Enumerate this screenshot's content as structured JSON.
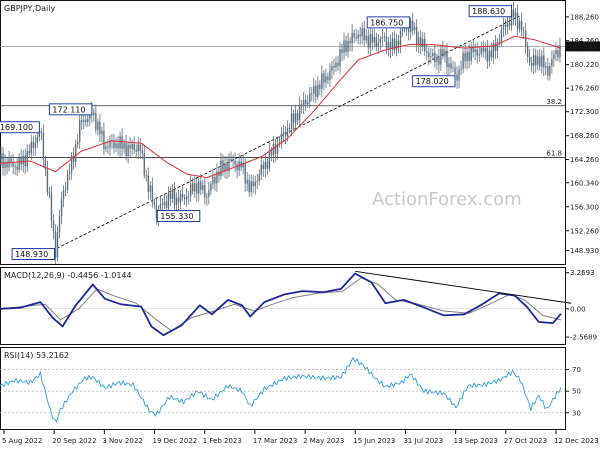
{
  "chart_data": [
    {
      "type": "candlestick",
      "title": "GBPJPY,Daily",
      "ohlc": [
        "183.826",
        "184.204",
        "183.227",
        "183.292"
      ],
      "last_price": "183.292",
      "ylim": [
        147.0,
        190.6
      ],
      "yticks": [
        148.93,
        152.26,
        156.3,
        160.34,
        164.26,
        168.26,
        172.3,
        176.26,
        180.22,
        184.26,
        188.26
      ],
      "ytick_labels": [
        "148.930",
        "152.260",
        "156.300",
        "160.340",
        "164.260",
        "168.260",
        "172.300",
        "176.260",
        "180.220",
        "184.260",
        "188.260"
      ],
      "xtick_labels": [
        "5 Aug 2022",
        "20 Sep 2022",
        "3 Nov 2022",
        "19 Dec 2022",
        "1 Feb 2023",
        "17 Mar 2023",
        "2 May 2023",
        "15 Jun 2023",
        "31 Jul 2023",
        "13 Sep 2023",
        "27 Oct 2023",
        "12 Dec 2023"
      ],
      "price_path": [
        [
          0,
          164.0
        ],
        [
          8,
          163.6
        ],
        [
          18,
          163.2
        ],
        [
          28,
          165.2
        ],
        [
          40,
          169.1
        ],
        [
          48,
          158.5
        ],
        [
          55,
          148.93
        ],
        [
          62,
          158.5
        ],
        [
          72,
          164.2
        ],
        [
          80,
          170.5
        ],
        [
          92,
          172.11
        ],
        [
          104,
          166.5
        ],
        [
          116,
          167.0
        ],
        [
          128,
          166.0
        ],
        [
          138,
          166.5
        ],
        [
          148,
          159.0
        ],
        [
          155,
          155.33
        ],
        [
          168,
          158.0
        ],
        [
          180,
          157.5
        ],
        [
          195,
          160.0
        ],
        [
          205,
          158.3
        ],
        [
          215,
          162.0
        ],
        [
          228,
          164.0
        ],
        [
          240,
          163.0
        ],
        [
          248,
          159.0
        ],
        [
          256,
          161.5
        ],
        [
          268,
          165.0
        ],
        [
          285,
          169.5
        ],
        [
          300,
          173.5
        ],
        [
          315,
          176.5
        ],
        [
          330,
          179.5
        ],
        [
          342,
          183.5
        ],
        [
          355,
          185.5
        ],
        [
          370,
          184.0
        ],
        [
          380,
          184.5
        ],
        [
          390,
          183.0
        ],
        [
          400,
          186.2
        ],
        [
          407,
          186.75
        ],
        [
          418,
          183.5
        ],
        [
          430,
          181.0
        ],
        [
          440,
          182.0
        ],
        [
          452,
          178.02
        ],
        [
          462,
          182.0
        ],
        [
          475,
          182.5
        ],
        [
          488,
          182.0
        ],
        [
          498,
          186.0
        ],
        [
          508,
          188.63
        ],
        [
          516,
          187.0
        ],
        [
          526,
          180.0
        ],
        [
          534,
          181.5
        ],
        [
          542,
          179.0
        ],
        [
          550,
          182.0
        ],
        [
          556,
          183.29
        ]
      ],
      "moving_average": [
        [
          0,
          163.6
        ],
        [
          30,
          164.0
        ],
        [
          55,
          162.2
        ],
        [
          80,
          165.6
        ],
        [
          110,
          167.4
        ],
        [
          140,
          167.0
        ],
        [
          165,
          163.8
        ],
        [
          185,
          161.8
        ],
        [
          205,
          161.2
        ],
        [
          230,
          162.8
        ],
        [
          260,
          164.8
        ],
        [
          285,
          167.8
        ],
        [
          310,
          172.2
        ],
        [
          335,
          177.2
        ],
        [
          355,
          181.0
        ],
        [
          380,
          182.6
        ],
        [
          405,
          183.6
        ],
        [
          430,
          183.6
        ],
        [
          460,
          183.0
        ],
        [
          490,
          183.4
        ],
        [
          510,
          185.0
        ],
        [
          530,
          184.4
        ],
        [
          556,
          183.0
        ]
      ],
      "hlines": [
        {
          "label": "38.2",
          "value": 173.3
        },
        {
          "label": "61.8",
          "value": 164.6
        }
      ],
      "channel_line": {
        "from": [
          52,
          148.93
        ],
        "to": [
          515,
          188.4
        ]
      },
      "annotations": [
        {
          "label": "169.100",
          "x": 40,
          "value": 169.1,
          "side": "left"
        },
        {
          "label": "172.110",
          "x": 92,
          "value": 172.11,
          "side": "left"
        },
        {
          "label": "148.930",
          "x": 55,
          "value": 148.93,
          "side": "left"
        },
        {
          "label": "155.330",
          "x": 155,
          "value": 155.33,
          "side": "right"
        },
        {
          "label": "186.750",
          "x": 407,
          "value": 186.75,
          "side": "left"
        },
        {
          "label": "178.020",
          "x": 452,
          "value": 178.02,
          "side": "left"
        },
        {
          "label": "188.630",
          "x": 508,
          "value": 188.63,
          "side": "left"
        }
      ],
      "watermark": "ActionForex.com",
      "colors": {
        "price": "#5a6f80",
        "ma": "#e03030",
        "trend": "#000000",
        "hline": "#333333"
      }
    },
    {
      "type": "line",
      "title": "MACD(12,26,9) -0.4456 -1.0144",
      "ylim": [
        -3.2,
        3.7
      ],
      "ytick_labels": [
        "3.2693",
        "0.00",
        "-2.5689"
      ],
      "yticks": [
        3.2693,
        0.0,
        -2.5689
      ],
      "macd": [
        [
          0,
          0.0
        ],
        [
          20,
          0.1
        ],
        [
          40,
          0.6
        ],
        [
          52,
          -0.8
        ],
        [
          62,
          -1.6
        ],
        [
          75,
          0.3
        ],
        [
          92,
          2.2
        ],
        [
          104,
          0.9
        ],
        [
          120,
          0.4
        ],
        [
          140,
          0.2
        ],
        [
          150,
          -1.6
        ],
        [
          162,
          -2.4
        ],
        [
          180,
          -1.5
        ],
        [
          198,
          0.3
        ],
        [
          210,
          -0.5
        ],
        [
          226,
          0.8
        ],
        [
          240,
          0.3
        ],
        [
          248,
          -0.7
        ],
        [
          262,
          0.6
        ],
        [
          282,
          1.3
        ],
        [
          300,
          1.6
        ],
        [
          320,
          1.5
        ],
        [
          338,
          1.8
        ],
        [
          352,
          3.2
        ],
        [
          368,
          2.4
        ],
        [
          382,
          0.5
        ],
        [
          400,
          0.8
        ],
        [
          418,
          0.2
        ],
        [
          440,
          -0.6
        ],
        [
          460,
          -0.5
        ],
        [
          478,
          0.4
        ],
        [
          495,
          1.4
        ],
        [
          510,
          1.2
        ],
        [
          522,
          0.2
        ],
        [
          534,
          -1.2
        ],
        [
          548,
          -1.3
        ],
        [
          556,
          -0.45
        ]
      ],
      "signal": [
        [
          0,
          0.0
        ],
        [
          22,
          0.2
        ],
        [
          45,
          0.4
        ],
        [
          60,
          -1.0
        ],
        [
          78,
          0.0
        ],
        [
          96,
          1.8
        ],
        [
          112,
          1.2
        ],
        [
          135,
          0.5
        ],
        [
          155,
          -1.0
        ],
        [
          170,
          -2.0
        ],
        [
          190,
          -0.8
        ],
        [
          212,
          -0.2
        ],
        [
          232,
          0.4
        ],
        [
          252,
          -0.2
        ],
        [
          270,
          0.4
        ],
        [
          290,
          1.0
        ],
        [
          315,
          1.4
        ],
        [
          340,
          1.6
        ],
        [
          358,
          2.8
        ],
        [
          375,
          2.2
        ],
        [
          392,
          0.8
        ],
        [
          415,
          0.4
        ],
        [
          440,
          -0.2
        ],
        [
          465,
          -0.4
        ],
        [
          485,
          0.4
        ],
        [
          505,
          1.3
        ],
        [
          520,
          0.8
        ],
        [
          538,
          -0.6
        ],
        [
          556,
          -1.01
        ]
      ],
      "trendline": {
        "from": [
          352,
          3.4
        ],
        "to": [
          566,
          0.5
        ]
      },
      "colors": {
        "macd": "#1a2a99",
        "signal": "#808080",
        "trend": "#000000"
      }
    },
    {
      "type": "line",
      "title": "RSI(14) 53.2162",
      "ylim": [
        15,
        90
      ],
      "yticks": [
        70,
        50,
        30
      ],
      "ytick_labels": [
        "70",
        "50",
        "30"
      ],
      "rsi": [
        [
          0,
          55
        ],
        [
          15,
          60
        ],
        [
          30,
          58
        ],
        [
          40,
          66
        ],
        [
          50,
          32
        ],
        [
          55,
          20
        ],
        [
          60,
          33
        ],
        [
          72,
          50
        ],
        [
          84,
          62
        ],
        [
          92,
          63
        ],
        [
          104,
          53
        ],
        [
          118,
          58
        ],
        [
          132,
          56
        ],
        [
          148,
          32
        ],
        [
          155,
          28
        ],
        [
          168,
          45
        ],
        [
          182,
          40
        ],
        [
          196,
          50
        ],
        [
          210,
          42
        ],
        [
          226,
          55
        ],
        [
          240,
          50
        ],
        [
          248,
          36
        ],
        [
          262,
          52
        ],
        [
          282,
          62
        ],
        [
          300,
          64
        ],
        [
          320,
          62
        ],
        [
          338,
          63
        ],
        [
          350,
          80
        ],
        [
          360,
          74
        ],
        [
          372,
          62
        ],
        [
          382,
          54
        ],
        [
          398,
          58
        ],
        [
          407,
          66
        ],
        [
          420,
          50
        ],
        [
          440,
          48
        ],
        [
          452,
          35
        ],
        [
          464,
          55
        ],
        [
          480,
          56
        ],
        [
          495,
          60
        ],
        [
          508,
          68
        ],
        [
          516,
          60
        ],
        [
          526,
          34
        ],
        [
          534,
          46
        ],
        [
          542,
          33
        ],
        [
          550,
          45
        ],
        [
          556,
          53
        ]
      ],
      "colors": {
        "rsi": "#2ea0dd",
        "level": "#aaaaaa"
      }
    }
  ]
}
